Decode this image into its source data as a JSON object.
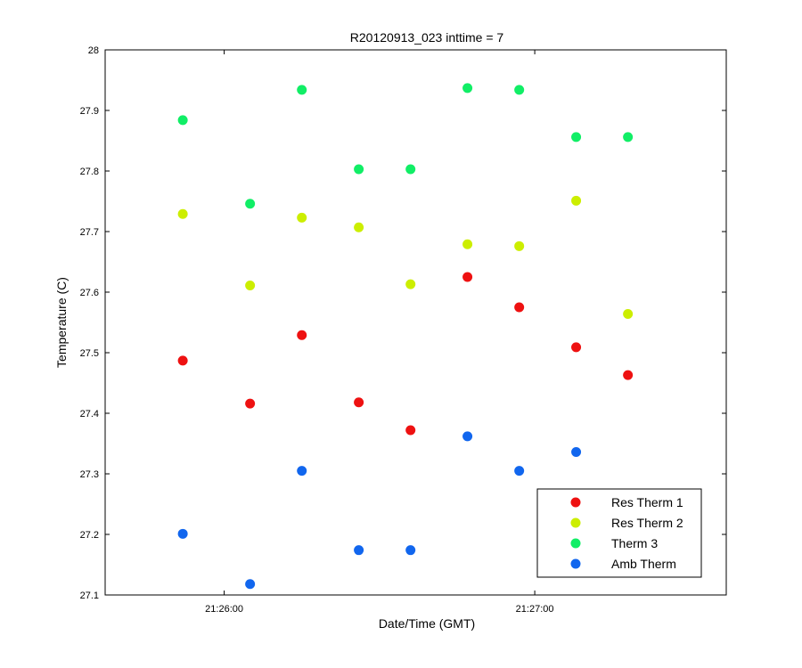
{
  "chart_data": {
    "type": "scatter",
    "title": "R20120913_023 inttime = 7",
    "xlabel": "Date/Time (GMT)",
    "ylabel": "Temperature (C)",
    "x_unit": "time (HH:MM:SS)",
    "xlim": [
      "21:25:37",
      "21:27:37"
    ],
    "ylim": [
      27.1,
      28.0
    ],
    "x_ticks": [
      "21:26:00",
      "21:27:00"
    ],
    "y_ticks": [
      27.1,
      27.2,
      27.3,
      27.4,
      27.5,
      27.6,
      27.7,
      27.8,
      27.9,
      28.0
    ],
    "grid": false,
    "legend_position": "bottom-right",
    "series": [
      {
        "name": "Res Therm 1",
        "color": "#ee1111",
        "points": [
          {
            "x": "21:25:52",
            "y": 27.487
          },
          {
            "x": "21:26:05",
            "y": 27.416
          },
          {
            "x": "21:26:15",
            "y": 27.529
          },
          {
            "x": "21:26:26",
            "y": 27.418
          },
          {
            "x": "21:26:36",
            "y": 27.372
          },
          {
            "x": "21:26:47",
            "y": 27.625
          },
          {
            "x": "21:26:57",
            "y": 27.575
          },
          {
            "x": "21:27:08",
            "y": 27.509
          },
          {
            "x": "21:27:18",
            "y": 27.463
          }
        ]
      },
      {
        "name": "Res Therm 2",
        "color": "#ccee00",
        "points": [
          {
            "x": "21:25:52",
            "y": 27.729
          },
          {
            "x": "21:26:05",
            "y": 27.611
          },
          {
            "x": "21:26:15",
            "y": 27.723
          },
          {
            "x": "21:26:26",
            "y": 27.707
          },
          {
            "x": "21:26:36",
            "y": 27.613
          },
          {
            "x": "21:26:47",
            "y": 27.679
          },
          {
            "x": "21:26:57",
            "y": 27.676
          },
          {
            "x": "21:27:08",
            "y": 27.751
          },
          {
            "x": "21:27:18",
            "y": 27.564
          }
        ]
      },
      {
        "name": "Therm 3",
        "color": "#11ee66",
        "points": [
          {
            "x": "21:25:52",
            "y": 27.884
          },
          {
            "x": "21:26:05",
            "y": 27.746
          },
          {
            "x": "21:26:15",
            "y": 27.934
          },
          {
            "x": "21:26:26",
            "y": 27.803
          },
          {
            "x": "21:26:36",
            "y": 27.803
          },
          {
            "x": "21:26:47",
            "y": 27.937
          },
          {
            "x": "21:26:57",
            "y": 27.934
          },
          {
            "x": "21:27:08",
            "y": 27.856
          },
          {
            "x": "21:27:18",
            "y": 27.856
          }
        ]
      },
      {
        "name": "Amb Therm",
        "color": "#1166ee",
        "points": [
          {
            "x": "21:25:52",
            "y": 27.201
          },
          {
            "x": "21:26:05",
            "y": 27.118
          },
          {
            "x": "21:26:15",
            "y": 27.305
          },
          {
            "x": "21:26:26",
            "y": 27.174
          },
          {
            "x": "21:26:36",
            "y": 27.174
          },
          {
            "x": "21:26:47",
            "y": 27.362
          },
          {
            "x": "21:26:57",
            "y": 27.305
          },
          {
            "x": "21:27:08",
            "y": 27.336
          }
        ]
      }
    ]
  }
}
